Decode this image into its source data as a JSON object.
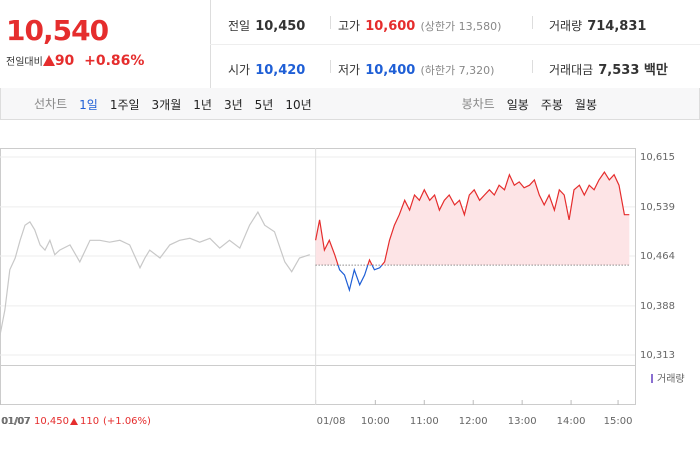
{
  "header": {
    "price": "10,540",
    "change_label": "전일대비",
    "change": "90",
    "change_pct": "+0.86%",
    "stats": [
      {
        "label": "전일",
        "value": "10,450"
      },
      {
        "label": "고가",
        "value": "10,600",
        "note": "(상한가 13,580)"
      },
      {
        "label": "거래량",
        "value": "714,831"
      },
      {
        "label": "시가",
        "value": "10,420"
      },
      {
        "label": "저가",
        "value": "10,400",
        "note": "(하한가 7,320)"
      },
      {
        "label": "거래대금",
        "value": "7,533 백만"
      }
    ]
  },
  "tabs": {
    "line_label": "선차트",
    "line": [
      "1일",
      "1주일",
      "3개월",
      "1년",
      "3년",
      "5년",
      "10년"
    ],
    "candle_label": "봉차트",
    "candle": [
      "일봉",
      "주봉",
      "월봉"
    ]
  },
  "chart_data": {
    "type": "line",
    "ylim": [
      10313,
      10615
    ],
    "yticks": [
      {
        "value": 10615,
        "label": "10,615"
      },
      {
        "value": 10539,
        "label": "10,539"
      },
      {
        "value": 10464,
        "label": "10,464"
      },
      {
        "value": 10388,
        "label": "10,388"
      },
      {
        "value": 10313,
        "label": "10,313"
      }
    ],
    "xlim": [
      0,
      14.1
    ],
    "xticks": [
      {
        "value": 0,
        "label": "01/07"
      },
      {
        "value": 6.45,
        "label": "01/08"
      },
      {
        "value": 7.67,
        "label": "10:00"
      },
      {
        "value": 8.67,
        "label": "11:00"
      },
      {
        "value": 9.67,
        "label": "12:00"
      },
      {
        "value": 10.67,
        "label": "13:00"
      },
      {
        "value": 11.67,
        "label": "14:00"
      },
      {
        "value": 12.63,
        "label": "15:00"
      }
    ],
    "baseline": 10450,
    "series": [
      {
        "color": "#c8c8c8",
        "x": [
          0,
          0.1,
          0.2,
          0.31,
          0.41,
          0.51,
          0.61,
          0.71,
          0.82,
          0.92,
          1.02,
          1.12,
          1.22,
          1.43,
          1.63,
          1.84,
          2.04,
          2.24,
          2.45,
          2.65,
          2.86,
          2.96,
          3.06,
          3.27,
          3.47,
          3.67,
          3.88,
          4.08,
          4.29,
          4.49,
          4.69,
          4.9,
          5.1,
          5.27,
          5.41,
          5.61,
          5.82,
          5.96,
          6.12,
          6.33
        ],
        "values": [
          10343,
          10382,
          10443,
          10461,
          10488,
          10511,
          10516,
          10504,
          10481,
          10473,
          10488,
          10466,
          10473,
          10481,
          10455,
          10488,
          10488,
          10485,
          10488,
          10481,
          10446,
          10461,
          10473,
          10461,
          10481,
          10488,
          10491,
          10485,
          10491,
          10476,
          10488,
          10476,
          10511,
          10531,
          10511,
          10501,
          10455,
          10440,
          10461,
          10466
        ]
      },
      {
        "color": "#e52d2d",
        "below_color": "#1f5fd6",
        "fill": "#fde4e6",
        "x": [
          6.45,
          6.53,
          6.63,
          6.73,
          6.84,
          6.94,
          7.04,
          7.14,
          7.24,
          7.35,
          7.45,
          7.55,
          7.65,
          7.76,
          7.86,
          7.96,
          8.06,
          8.16,
          8.27,
          8.37,
          8.47,
          8.57,
          8.67,
          8.78,
          8.88,
          8.98,
          9.08,
          9.18,
          9.29,
          9.39,
          9.49,
          9.59,
          9.69,
          9.8,
          9.9,
          10.0,
          10.1,
          10.2,
          10.31,
          10.41,
          10.51,
          10.61,
          10.71,
          10.82,
          10.92,
          11.02,
          11.12,
          11.22,
          11.33,
          11.43,
          11.53,
          11.63,
          11.73,
          11.84,
          11.94,
          12.04,
          12.14,
          12.24,
          12.35,
          12.45,
          12.55,
          12.65,
          12.76,
          12.86
        ],
        "values": [
          10488,
          10519,
          10473,
          10488,
          10466,
          10443,
          10435,
          10412,
          10443,
          10420,
          10435,
          10458,
          10443,
          10446,
          10455,
          10488,
          10511,
          10527,
          10549,
          10534,
          10557,
          10549,
          10565,
          10549,
          10557,
          10534,
          10549,
          10557,
          10542,
          10549,
          10527,
          10557,
          10565,
          10549,
          10557,
          10565,
          10557,
          10572,
          10565,
          10588,
          10572,
          10577,
          10568,
          10572,
          10580,
          10557,
          10542,
          10557,
          10534,
          10565,
          10557,
          10519,
          10565,
          10572,
          10557,
          10572,
          10565,
          10580,
          10592,
          10580,
          10588,
          10572,
          10527,
          10527
        ]
      }
    ],
    "hover": {
      "date": "01/07",
      "price": "10,450",
      "change": "110",
      "pct": "(+1.06%)"
    },
    "volume_label": "거래량"
  }
}
